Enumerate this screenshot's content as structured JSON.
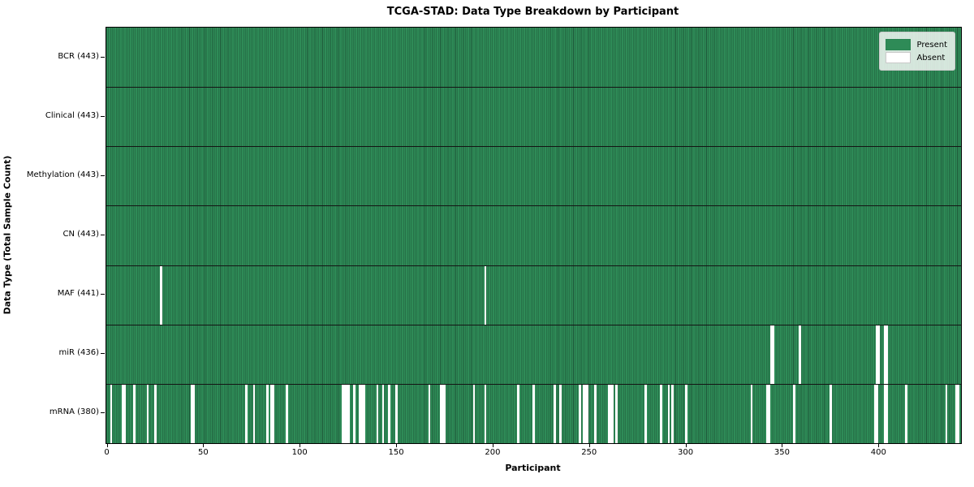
{
  "figure": {
    "title": "TCGA-STAD: Data Type Breakdown by Participant",
    "xlabel": "Participant",
    "ylabel": "Data Type (Total Sample Count)"
  },
  "legend": {
    "present_label": "Present",
    "absent_label": "Absent"
  },
  "colors": {
    "present": "#2e8b57",
    "absent": "#ffffff",
    "cell_edge": "#17402a",
    "row_separator": "#141414",
    "plot_border": "#000000",
    "legend_border": "#cccccc"
  },
  "chart_data": {
    "type": "heatmap",
    "title": "TCGA-STAD: Data Type Breakdown by Participant",
    "xlabel": "Participant",
    "ylabel": "Data Type (Total Sample Count)",
    "x_range": [
      0,
      443
    ],
    "x_ticks": [
      0,
      50,
      100,
      150,
      200,
      250,
      300,
      350,
      400
    ],
    "n_participants": 443,
    "grid": false,
    "legend_labels": [
      "Present",
      "Absent"
    ],
    "legend_position": "upper right",
    "cell_states": {
      "present": 1,
      "absent": 0
    },
    "rows": [
      {
        "label": "BCR (443)",
        "data_type": "BCR",
        "present_count": 443,
        "absent_participants": []
      },
      {
        "label": "Clinical (443)",
        "data_type": "Clinical",
        "present_count": 443,
        "absent_participants": []
      },
      {
        "label": "Methylation (443)",
        "data_type": "Methylation",
        "present_count": 443,
        "absent_participants": []
      },
      {
        "label": "CN (443)",
        "data_type": "CN",
        "present_count": 443,
        "absent_participants": []
      },
      {
        "label": "MAF (441)",
        "data_type": "MAF",
        "present_count": 441,
        "absent_participants": [
          28,
          196
        ]
      },
      {
        "label": "miR (436)",
        "data_type": "miR",
        "present_count": 436,
        "absent_participants": [
          344,
          345,
          359,
          399,
          400,
          403,
          404
        ]
      },
      {
        "label": "mRNA (380)",
        "data_type": "mRNA",
        "present_count": 380,
        "absent_participants": [
          2,
          8,
          9,
          14,
          21,
          25,
          44,
          45,
          72,
          76,
          83,
          85,
          86,
          93,
          122,
          123,
          124,
          125,
          128,
          131,
          132,
          133,
          140,
          143,
          146,
          150,
          167,
          173,
          174,
          175,
          190,
          196,
          213,
          221,
          232,
          235,
          245,
          247,
          248,
          249,
          253,
          260,
          261,
          262,
          264,
          279,
          287,
          291,
          293,
          300,
          334,
          342,
          343,
          356,
          375,
          398,
          399,
          403,
          404,
          414,
          435,
          440,
          441
        ]
      }
    ]
  }
}
